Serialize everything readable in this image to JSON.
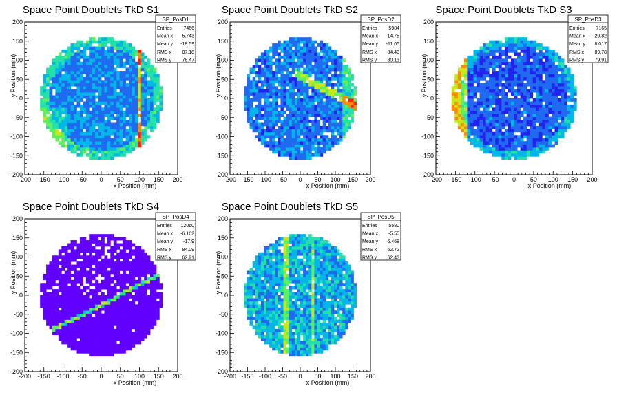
{
  "figure": {
    "background": "#ffffff",
    "palette": [
      "#6200ff",
      "#2323ef",
      "#1f6af0",
      "#00b7e8",
      "#24e0a9",
      "#5ff05a",
      "#c8e81c",
      "#ff8c00",
      "#ff1a00"
    ]
  },
  "chart_data": [
    {
      "type": "heatmap",
      "title": "Space Point Doublets TkD S1",
      "xlabel": "x Position (mm)",
      "ylabel": "y Position (mm)",
      "xlim": [
        -200,
        200
      ],
      "ylim": [
        -200,
        200
      ],
      "xticks": [
        "-200",
        "-150",
        "-100",
        "-50",
        "0",
        "50",
        "100",
        "150",
        "200"
      ],
      "yticks": [
        "-200",
        "-150",
        "-100",
        "-50",
        "0",
        "50",
        "100",
        "150",
        "200"
      ],
      "bins": 50,
      "active_radius": 160,
      "stats": {
        "name": "SP_PosD1",
        "rows": [
          [
            "Entries",
            "7466"
          ],
          [
            "Mean x",
            "5.743"
          ],
          [
            "Mean y",
            "-18.59"
          ],
          [
            "RMS x",
            "87.18"
          ],
          [
            "RMS y",
            "78.47"
          ]
        ]
      }
    },
    {
      "type": "heatmap",
      "title": "Space Point Doublets TkD S2",
      "xlabel": "x Position (mm)",
      "ylabel": "y Position (mm)",
      "xlim": [
        -200,
        200
      ],
      "ylim": [
        -200,
        200
      ],
      "xticks": [
        "-200",
        "-150",
        "-100",
        "-50",
        "0",
        "50",
        "100",
        "150",
        "200"
      ],
      "yticks": [
        "-200",
        "-150",
        "-100",
        "-50",
        "0",
        "50",
        "100",
        "150",
        "200"
      ],
      "bins": 50,
      "active_radius": 160,
      "stats": {
        "name": "SP_PosD2",
        "rows": [
          [
            "Entries",
            "5984"
          ],
          [
            "Mean x",
            "14.75"
          ],
          [
            "Mean y",
            "-11.05"
          ],
          [
            "RMS x",
            "84.43"
          ],
          [
            "RMS y",
            "80.13"
          ]
        ]
      }
    },
    {
      "type": "heatmap",
      "title": "Space Point Doublets TkD S3",
      "xlabel": "x Position (mm)",
      "ylabel": "y Position (mm)",
      "xlim": [
        -200,
        200
      ],
      "ylim": [
        -200,
        200
      ],
      "xticks": [
        "-200",
        "-150",
        "-100",
        "-50",
        "0",
        "50",
        "100",
        "150",
        "200"
      ],
      "yticks": [
        "-200",
        "-150",
        "-100",
        "-50",
        "0",
        "50",
        "100",
        "150",
        "200"
      ],
      "bins": 50,
      "active_radius": 160,
      "stats": {
        "name": "SP_PosD3",
        "rows": [
          [
            "Entries",
            "7165"
          ],
          [
            "Mean x",
            "-29.82"
          ],
          [
            "Mean y",
            "8.017"
          ],
          [
            "RMS x",
            "89.78"
          ],
          [
            "RMS y",
            "79.91"
          ]
        ]
      }
    },
    {
      "type": "heatmap",
      "title": "Space Point Doublets TkD S4",
      "xlabel": "x Position (mm)",
      "ylabel": "y Position (mm)",
      "xlim": [
        -200,
        200
      ],
      "ylim": [
        -200,
        200
      ],
      "xticks": [
        "-200",
        "-150",
        "-100",
        "-50",
        "0",
        "50",
        "100",
        "150",
        "200"
      ],
      "yticks": [
        "-200",
        "-150",
        "-100",
        "-50",
        "0",
        "50",
        "100",
        "150",
        "200"
      ],
      "bins": 50,
      "active_radius": 160,
      "stats": {
        "name": "SP_PosD4",
        "rows": [
          [
            "Entries",
            "12060"
          ],
          [
            "Mean x",
            "-6.162"
          ],
          [
            "Mean y",
            "-17.9"
          ],
          [
            "RMS x",
            "84.09"
          ],
          [
            "RMS y",
            "62.91"
          ]
        ]
      }
    },
    {
      "type": "heatmap",
      "title": "Space Point Doublets TkD S5",
      "xlabel": "x Position (mm)",
      "ylabel": "y Position (mm)",
      "xlim": [
        -200,
        200
      ],
      "ylim": [
        -200,
        200
      ],
      "xticks": [
        "-200",
        "-150",
        "-100",
        "-50",
        "0",
        "50",
        "100",
        "150",
        "200"
      ],
      "yticks": [
        "-200",
        "-150",
        "-100",
        "-50",
        "0",
        "50",
        "100",
        "150",
        "200"
      ],
      "bins": 50,
      "active_radius": 160,
      "stats": {
        "name": "SP_PosD5",
        "rows": [
          [
            "Entries",
            "5580"
          ],
          [
            "Mean x",
            "-5.55"
          ],
          [
            "Mean y",
            "6.468"
          ],
          [
            "RMS x",
            "62.72"
          ],
          [
            "RMS y",
            "62.43"
          ]
        ]
      }
    }
  ]
}
